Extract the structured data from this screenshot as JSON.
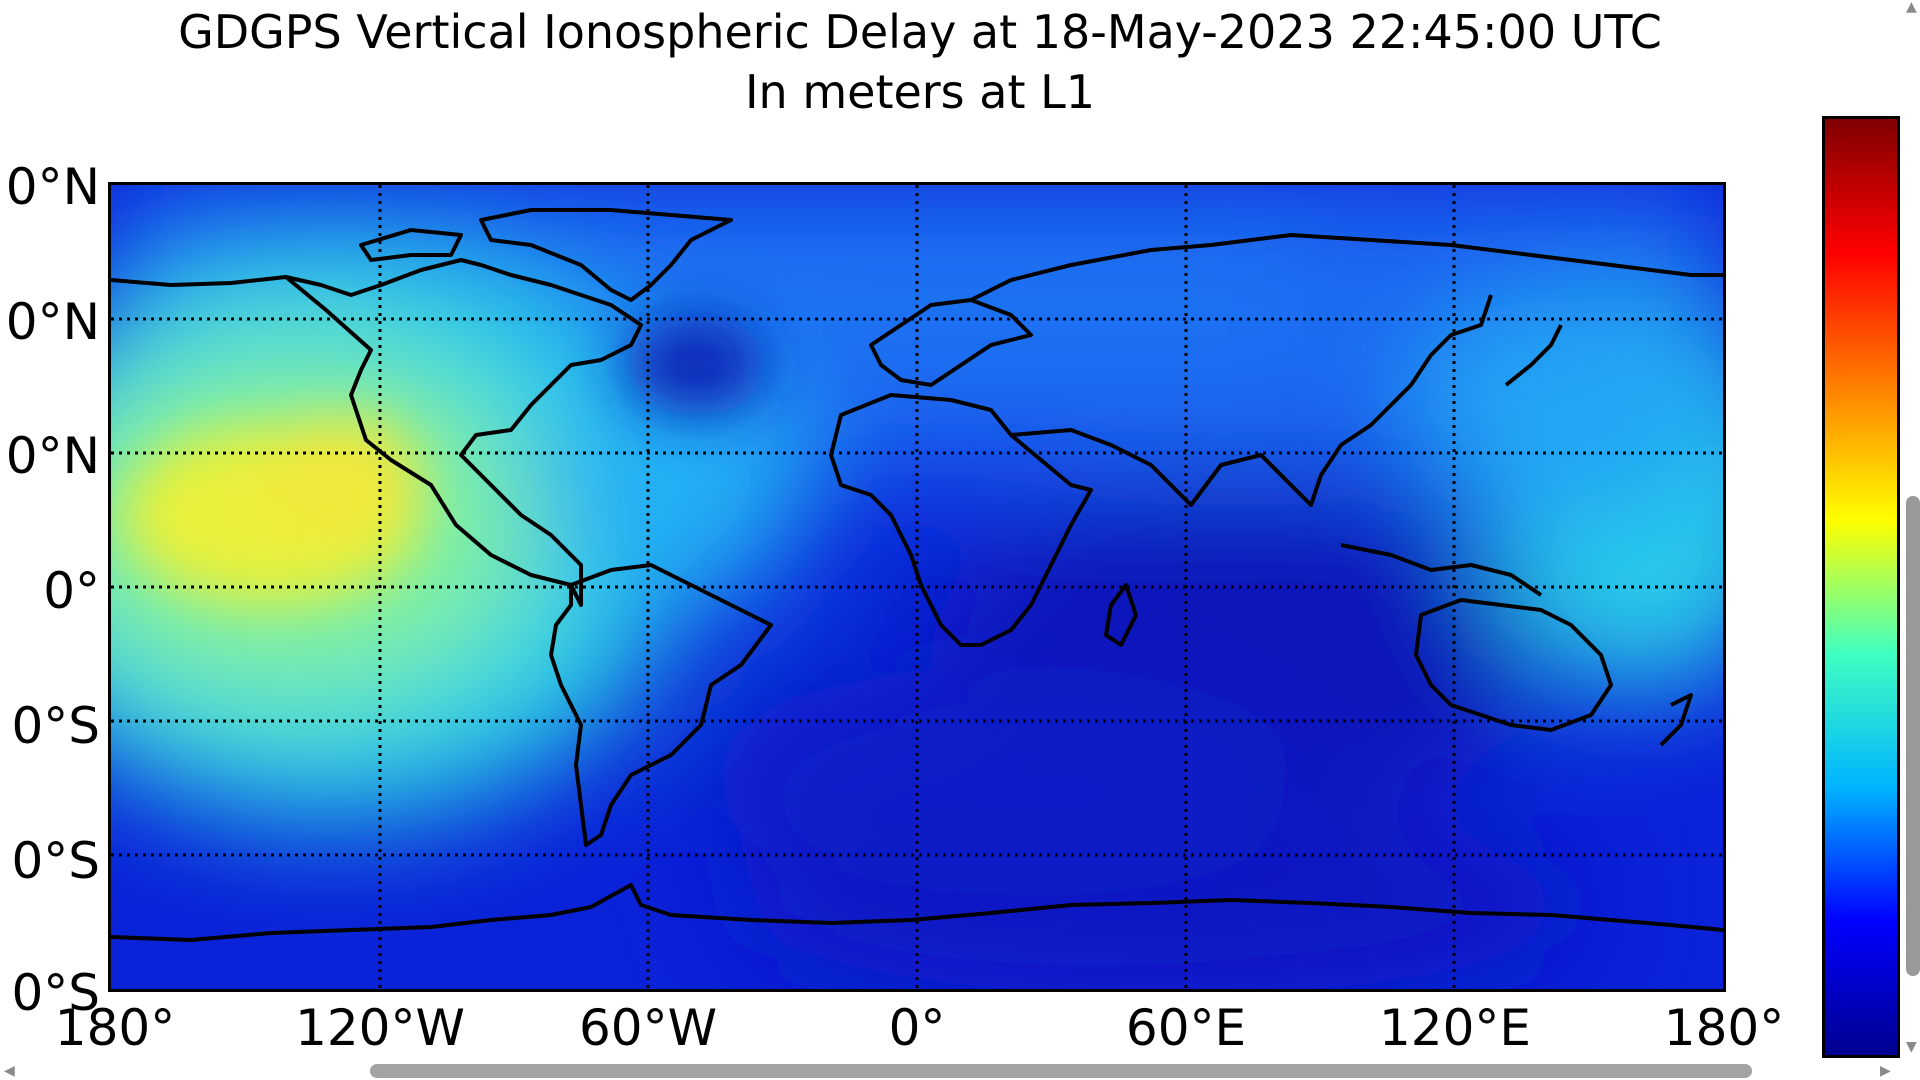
{
  "title": {
    "line1": "GDGPS Vertical Ionospheric Delay at 18-May-2023 22:45:00 UTC",
    "line2": "In meters at L1"
  },
  "map": {
    "lat_labels": [
      "0°N",
      "0°N",
      "0°N",
      "0°",
      "0°S",
      "0°S",
      "0°S"
    ],
    "lon_labels": [
      "180°",
      "120°W",
      "60°W",
      "0°",
      "60°E",
      "120°E",
      "180°"
    ],
    "grid_style": "dotted black lines every 60° longitude, 30° latitude",
    "projection": "equirectangular, 180°W to 180°E, 90°S to 90°N",
    "colormap": "jet",
    "colors": {
      "background_low": "#0a1ed2",
      "high_values": "#e9f03a",
      "mid_values": "#2fd4ea",
      "coastline": "#000000"
    }
  },
  "colorbar": {
    "orientation": "vertical",
    "colormap": "jet",
    "colors": [
      "#00008f",
      "#0000ff",
      "#00b4ff",
      "#40ffc0",
      "#ffff00",
      "#ff8000",
      "#ff0000",
      "#800000"
    ]
  }
}
